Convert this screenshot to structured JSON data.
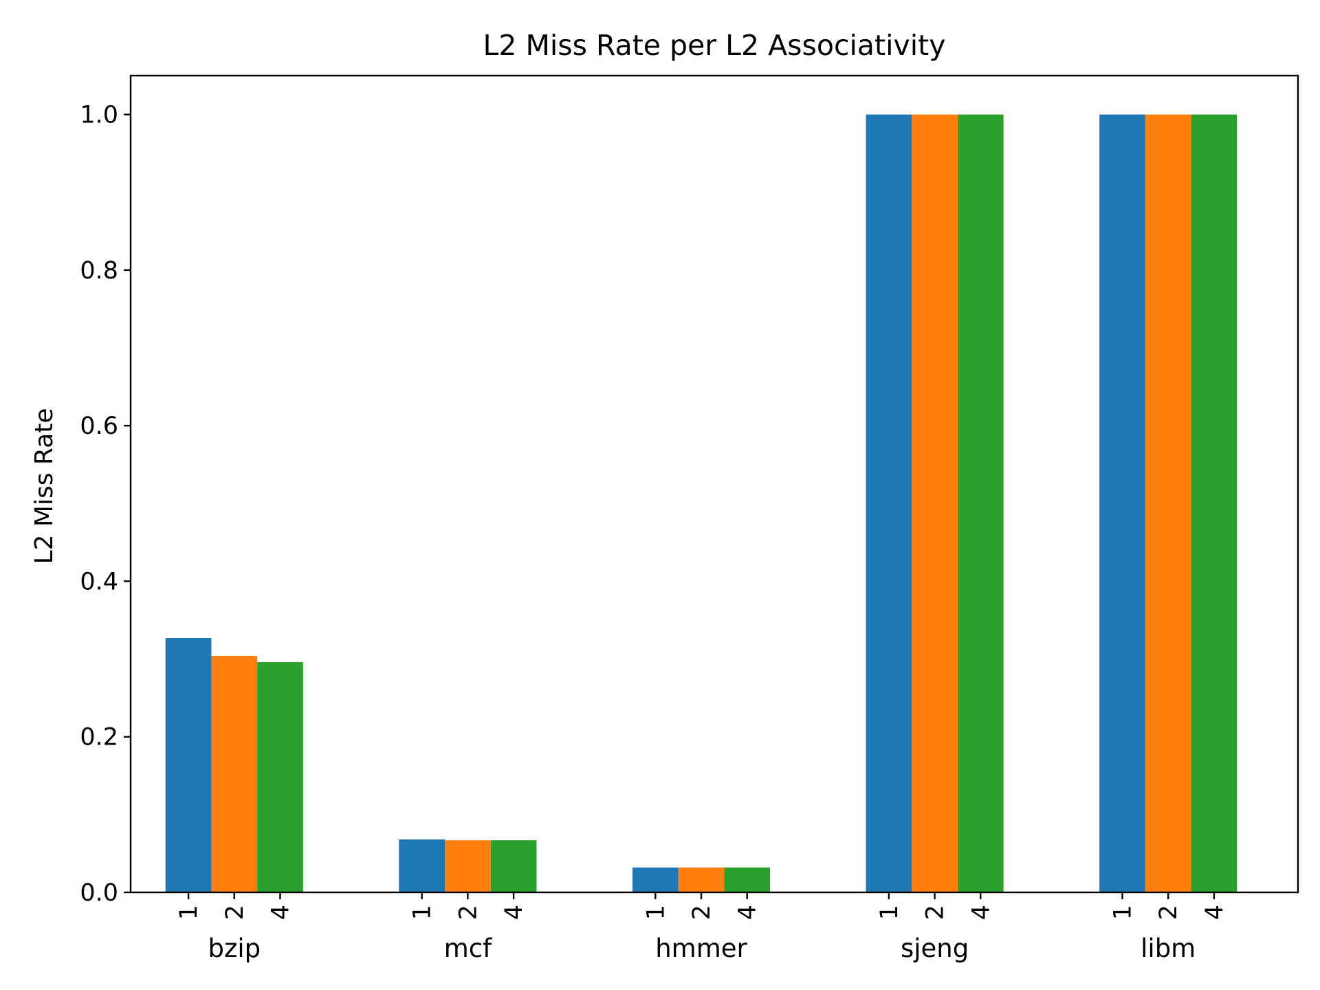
{
  "chart_data": {
    "type": "bar",
    "title": "L2 Miss Rate per L2 Associativity",
    "xlabel": "",
    "ylabel": "L2 Miss Rate",
    "ylim": [
      0,
      1.05
    ],
    "yticks": [
      "0.0",
      "0.2",
      "0.4",
      "0.6",
      "0.8",
      "1.0"
    ],
    "grid": false,
    "categories": [
      "bzip",
      "mcf",
      "hmmer",
      "sjeng",
      "libm"
    ],
    "group_tick_labels": [
      "1",
      "2",
      "4"
    ],
    "series": [
      {
        "values": [
          0.327,
          0.068,
          0.032,
          1.0,
          1.0
        ],
        "color": "#1f77b4"
      },
      {
        "values": [
          0.304,
          0.067,
          0.032,
          1.0,
          1.0
        ],
        "color": "#ff7f0e"
      },
      {
        "values": [
          0.296,
          0.067,
          0.032,
          1.0,
          1.0
        ],
        "color": "#2ca02c"
      }
    ]
  }
}
